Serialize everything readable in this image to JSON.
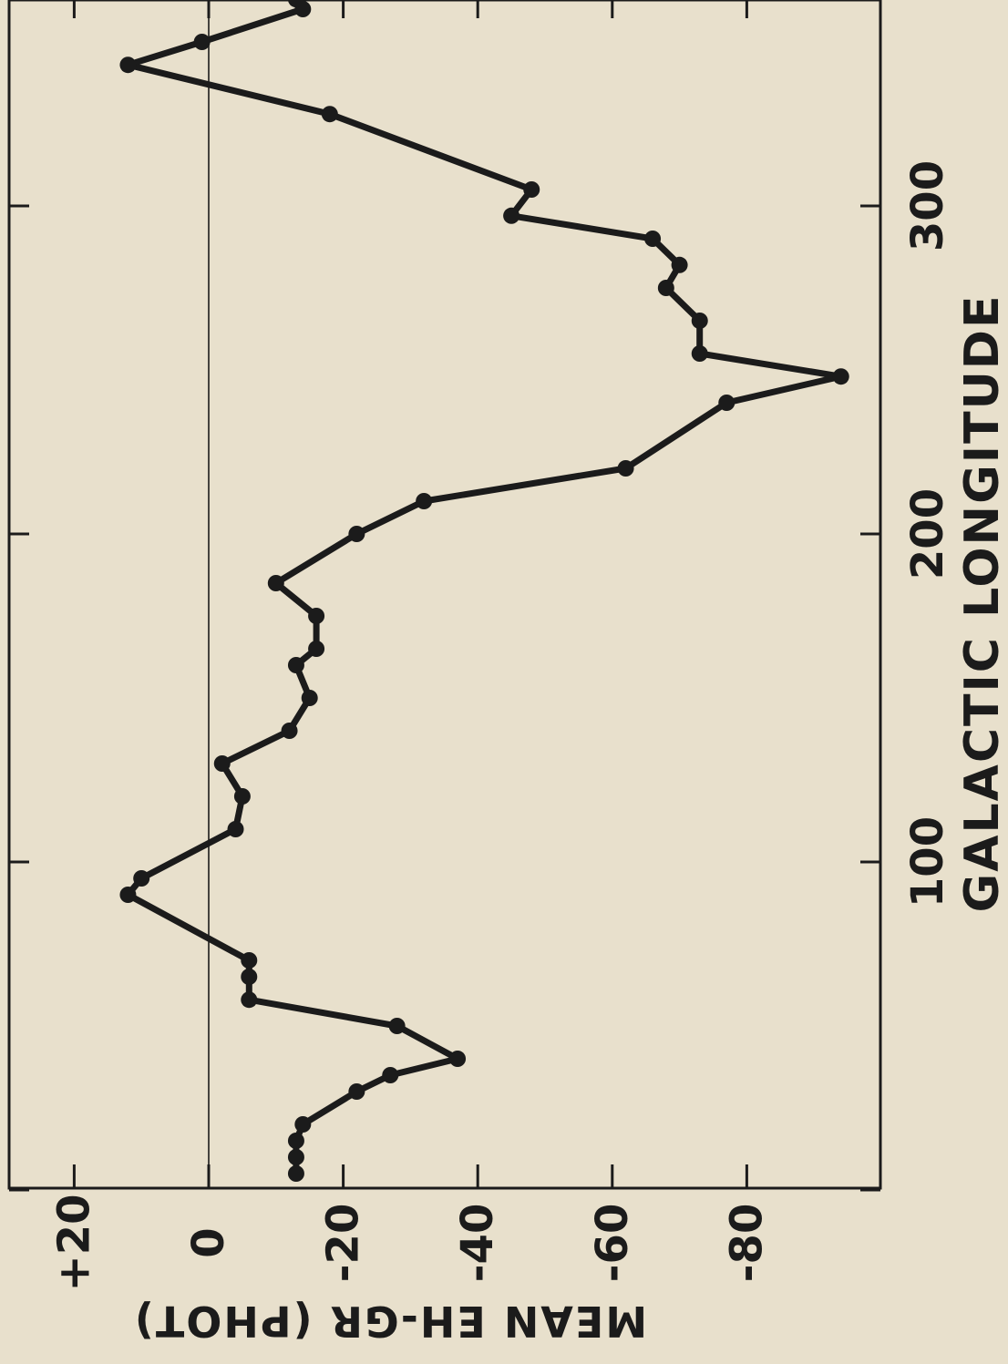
{
  "chart_data": {
    "type": "line",
    "orientation": "rotated 90 degrees clockwise (galactic longitude runs bottom-to-top along the right edge)",
    "title": "",
    "xlabel": "GALACTIC LONGITUDE",
    "ylabel": "MEAN EH-GR (PHOT)",
    "xlim": [
      -3,
      367
    ],
    "ylim": [
      -100,
      27
    ],
    "x_ticks": [
      100,
      200,
      300
    ],
    "x_tick_labels": [
      "100",
      "200",
      "300"
    ],
    "x_tick_marks": [
      0,
      100,
      200,
      300
    ],
    "y_ticks": [
      20,
      0,
      -20,
      -40,
      -60,
      -80
    ],
    "y_tick_labels": [
      "+20",
      "0",
      "-20",
      "-40",
      "-60",
      "-80"
    ],
    "reference_line_y": 0,
    "grid": false,
    "series": [
      {
        "color": "#1b1b1b",
        "x": [
          5,
          10,
          15,
          20,
          30,
          35,
          40,
          50,
          58,
          65,
          70,
          90,
          95,
          110,
          120,
          130,
          140,
          150,
          160,
          165,
          175,
          185,
          200,
          210,
          220,
          240,
          248,
          255,
          265,
          275,
          282,
          290,
          297,
          305,
          328,
          343,
          350,
          360,
          363
        ],
        "y": [
          -13,
          -13,
          -13,
          -14,
          -22,
          -27,
          -37,
          -28,
          -6,
          -6,
          -6,
          12,
          10,
          -4,
          -5,
          -2,
          -12,
          -15,
          -13,
          -16,
          -16,
          -10,
          -22,
          -32,
          -62,
          -77,
          -94,
          -73,
          -73,
          -68,
          -70,
          -66,
          -45,
          -48,
          -18,
          12,
          1,
          -14,
          -13
        ]
      }
    ]
  }
}
